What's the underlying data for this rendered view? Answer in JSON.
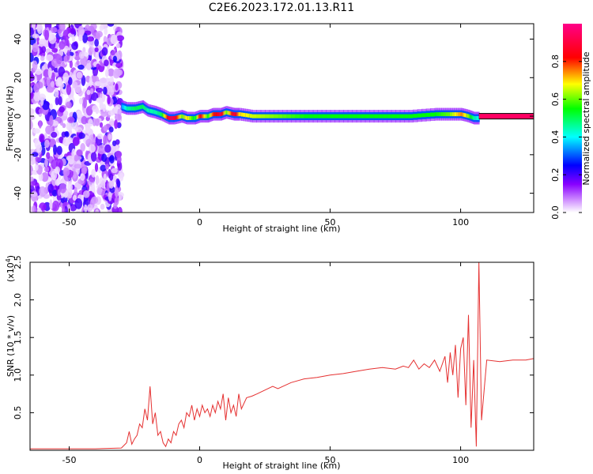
{
  "title": "C2E6.2023.172.01.13.R11",
  "chart_data": [
    {
      "type": "heatmap",
      "xlabel": "Height of straight line (km)",
      "ylabel": "Frequency (Hz)",
      "xlim": [
        -65,
        128
      ],
      "ylim": [
        -50,
        48
      ],
      "xticks": [
        -50,
        0,
        50,
        100
      ],
      "yticks": [
        -40,
        -20,
        0,
        20,
        40
      ],
      "colorbar": {
        "label": "Normalized spectral amplitude",
        "range": [
          0,
          1
        ],
        "ticks": [
          "0.0",
          "0.2",
          "0.4",
          "0.6",
          "0.8"
        ],
        "colors": [
          "#ffffff",
          "#8800ff",
          "#0000ff",
          "#00ffff",
          "#00ff00",
          "#ffff00",
          "#ff0000",
          "#ff0088"
        ]
      },
      "noise_region_x": [
        -65,
        -30
      ],
      "ridge": {
        "x": [
          -30,
          -28,
          -25,
          -22,
          -20,
          -17,
          -15,
          -12,
          -10,
          -7,
          -5,
          -2,
          0,
          3,
          5,
          8,
          10,
          13,
          15,
          20,
          30,
          40,
          50,
          60,
          70,
          80,
          90,
          95,
          100,
          103,
          105,
          107
        ],
        "freq": [
          5,
          4,
          4,
          5,
          3,
          2,
          1,
          -1,
          -1,
          0,
          -1,
          -1,
          0,
          0,
          1,
          1,
          2,
          1,
          1,
          0,
          0,
          0,
          0,
          0,
          0,
          0,
          1,
          1,
          1,
          0,
          -1,
          -1
        ],
        "amplitude": [
          0.35,
          0.45,
          0.5,
          0.5,
          0.45,
          0.45,
          0.5,
          0.9,
          0.9,
          0.6,
          0.7,
          0.5,
          0.85,
          0.55,
          0.8,
          0.9,
          0.6,
          0.9,
          0.7,
          0.65,
          0.6,
          0.55,
          0.55,
          0.55,
          0.55,
          0.55,
          0.55,
          0.6,
          0.75,
          0.6,
          0.45,
          0.4
        ]
      },
      "reference_line": {
        "x": [
          107,
          128
        ],
        "freq": 0,
        "amplitude": 0.95
      }
    },
    {
      "type": "line",
      "xlabel": "Height of straight line (km)",
      "ylabel": "SNR (10 * v/v)",
      "yscale_label": "(x10",
      "yscale_exponent": "4",
      "yscale_close": ")",
      "xlim": [
        -65,
        128
      ],
      "ylim": [
        0,
        2.5
      ],
      "xticks": [
        -50,
        0,
        50,
        100
      ],
      "yticks": [
        "0.5",
        "1.0",
        "1.5",
        "2.0",
        "2.5"
      ],
      "series": [
        {
          "color": "#e53030",
          "x": [
            -65,
            -40,
            -30,
            -28,
            -27,
            -26,
            -25,
            -24,
            -23,
            -22,
            -21,
            -20,
            -19,
            -18,
            -17,
            -16,
            -15,
            -14,
            -13,
            -12,
            -11,
            -10,
            -9,
            -8,
            -7,
            -6,
            -5,
            -4,
            -3,
            -2,
            -1,
            0,
            1,
            2,
            3,
            4,
            5,
            6,
            7,
            8,
            9,
            10,
            11,
            12,
            13,
            14,
            15,
            16,
            18,
            20,
            22,
            25,
            28,
            30,
            35,
            40,
            45,
            50,
            55,
            60,
            65,
            70,
            75,
            78,
            80,
            82,
            84,
            86,
            88,
            90,
            92,
            94,
            95,
            96,
            97,
            98,
            99,
            100,
            101,
            102,
            103,
            104,
            105,
            106,
            107,
            108,
            110,
            115,
            120,
            125,
            128
          ],
          "y": [
            0.02,
            0.02,
            0.03,
            0.1,
            0.25,
            0.08,
            0.15,
            0.2,
            0.35,
            0.3,
            0.55,
            0.4,
            0.85,
            0.35,
            0.5,
            0.2,
            0.25,
            0.1,
            0.05,
            0.15,
            0.1,
            0.25,
            0.2,
            0.35,
            0.4,
            0.3,
            0.5,
            0.45,
            0.6,
            0.4,
            0.55,
            0.45,
            0.6,
            0.5,
            0.55,
            0.45,
            0.6,
            0.5,
            0.65,
            0.55,
            0.75,
            0.4,
            0.7,
            0.5,
            0.6,
            0.45,
            0.75,
            0.55,
            0.7,
            0.72,
            0.75,
            0.8,
            0.85,
            0.82,
            0.9,
            0.95,
            0.97,
            1.0,
            1.02,
            1.05,
            1.08,
            1.1,
            1.08,
            1.12,
            1.1,
            1.2,
            1.08,
            1.15,
            1.1,
            1.2,
            1.05,
            1.25,
            0.9,
            1.3,
            1.0,
            1.4,
            0.7,
            1.35,
            1.5,
            0.6,
            1.8,
            0.3,
            1.2,
            0.05,
            2.5,
            0.4,
            1.2,
            1.18,
            1.2,
            1.2,
            1.22
          ]
        }
      ]
    }
  ]
}
